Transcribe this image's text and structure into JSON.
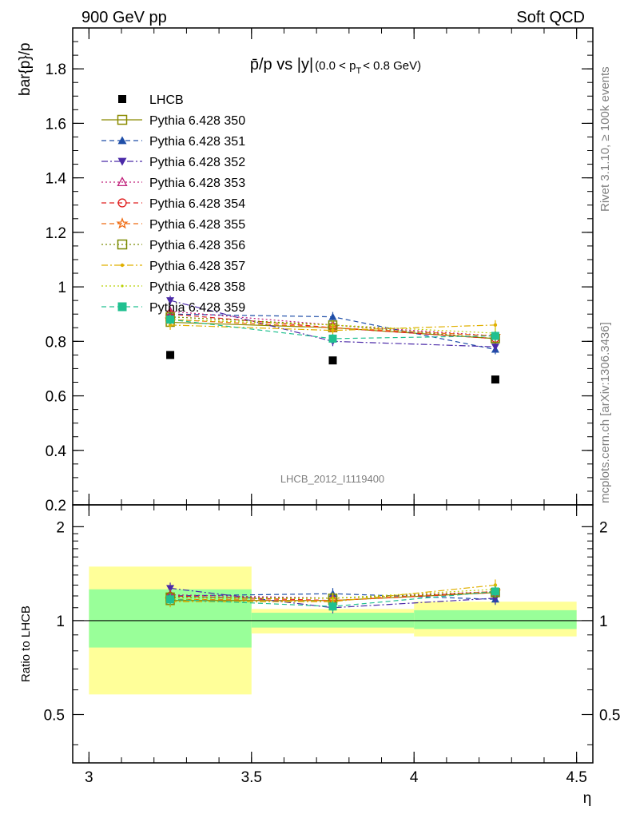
{
  "header": {
    "left": "900 GeV pp",
    "right": "Soft QCD"
  },
  "side_labels": {
    "rivet": "Rivet 3.1.10, ≥ 100k events",
    "mcplots": "mcplots.cern.ch [arXiv:1306.3436]"
  },
  "chart_data": [
    {
      "type": "scatter",
      "panel": "main",
      "title": "p̄/p vs |y| (0.0 < p_T < 0.8 GeV)",
      "ylabel": "bar{p}/p",
      "xlabel": "η",
      "watermark": "LHCB_2012_I1119400",
      "xlim": [
        2.95,
        4.55
      ],
      "ylim": [
        0.2,
        1.95
      ],
      "yticks": [
        "0.2",
        "0.4",
        "0.6",
        "0.8",
        "1",
        "1.2",
        "1.4",
        "1.6",
        "1.8"
      ],
      "legend_position": "top-left",
      "x": [
        3.25,
        3.75,
        4.25
      ],
      "data": {
        "name": "LHCB",
        "values": [
          0.75,
          0.73,
          0.66
        ]
      },
      "series": [
        {
          "name": "Pythia 6.428 350",
          "color": "#8b8b00",
          "marker": "open-square",
          "dash": "solid",
          "values": [
            0.87,
            0.85,
            0.81
          ]
        },
        {
          "name": "Pythia 6.428 351",
          "color": "#1f4ea8",
          "marker": "triangle-up",
          "dash": "dashed",
          "values": [
            0.9,
            0.89,
            0.77
          ]
        },
        {
          "name": "Pythia 6.428 352",
          "color": "#4b2aa8",
          "marker": "triangle-down",
          "dash": "dashdot",
          "values": [
            0.95,
            0.8,
            0.78
          ]
        },
        {
          "name": "Pythia 6.428 353",
          "color": "#c0207a",
          "marker": "open-triangle",
          "dash": "dotted",
          "values": [
            0.91,
            0.86,
            0.82
          ]
        },
        {
          "name": "Pythia 6.428 354",
          "color": "#e02020",
          "marker": "open-circle",
          "dash": "dashed",
          "values": [
            0.9,
            0.85,
            0.81
          ]
        },
        {
          "name": "Pythia 6.428 355",
          "color": "#ef6a10",
          "marker": "open-star",
          "dash": "dashed",
          "values": [
            0.88,
            0.85,
            0.82
          ]
        },
        {
          "name": "Pythia 6.428 356",
          "color": "#7a8a00",
          "marker": "open-square",
          "dash": "dotted",
          "values": [
            0.89,
            0.86,
            0.81
          ]
        },
        {
          "name": "Pythia 6.428 357",
          "color": "#e0b000",
          "marker": "dot",
          "dash": "dashdot",
          "values": [
            0.86,
            0.84,
            0.86
          ]
        },
        {
          "name": "Pythia 6.428 358",
          "color": "#b8d000",
          "marker": "small-dot",
          "dash": "dotted",
          "values": [
            0.88,
            0.86,
            0.83
          ]
        },
        {
          "name": "Pythia 6.428 359",
          "color": "#20c090",
          "marker": "filled-square",
          "dash": "dashed",
          "values": [
            0.88,
            0.81,
            0.82
          ]
        }
      ]
    },
    {
      "type": "scatter",
      "panel": "ratio",
      "ylabel": "Ratio to LHCB",
      "xlabel": "η",
      "xlim": [
        2.95,
        4.55
      ],
      "ylim": [
        0.35,
        2.35
      ],
      "log_y": true,
      "xticks": [
        "3",
        "3.5",
        "4",
        "4.5"
      ],
      "yticks": [
        "0.5",
        "1",
        "2"
      ],
      "x": [
        3.25,
        3.75,
        4.25
      ],
      "bands": [
        {
          "x": [
            3.0,
            3.5
          ],
          "green": [
            0.82,
            1.26
          ],
          "yellow": [
            0.58,
            1.49
          ]
        },
        {
          "x": [
            3.5,
            4.0
          ],
          "green": [
            0.95,
            1.06
          ],
          "yellow": [
            0.91,
            1.09
          ]
        },
        {
          "x": [
            4.0,
            4.5
          ],
          "green": [
            0.94,
            1.08
          ],
          "yellow": [
            0.89,
            1.15
          ]
        }
      ],
      "series": [
        {
          "name": "Pythia 6.428 350",
          "values": [
            1.16,
            1.16,
            1.23
          ]
        },
        {
          "name": "Pythia 6.428 351",
          "values": [
            1.2,
            1.22,
            1.17
          ]
        },
        {
          "name": "Pythia 6.428 352",
          "values": [
            1.27,
            1.1,
            1.18
          ]
        },
        {
          "name": "Pythia 6.428 353",
          "values": [
            1.21,
            1.18,
            1.24
          ]
        },
        {
          "name": "Pythia 6.428 354",
          "values": [
            1.2,
            1.16,
            1.23
          ]
        },
        {
          "name": "Pythia 6.428 355",
          "values": [
            1.17,
            1.16,
            1.24
          ]
        },
        {
          "name": "Pythia 6.428 356",
          "values": [
            1.19,
            1.18,
            1.23
          ]
        },
        {
          "name": "Pythia 6.428 357",
          "values": [
            1.15,
            1.15,
            1.3
          ]
        },
        {
          "name": "Pythia 6.428 358",
          "values": [
            1.17,
            1.18,
            1.26
          ]
        },
        {
          "name": "Pythia 6.428 359",
          "values": [
            1.17,
            1.11,
            1.24
          ]
        }
      ]
    }
  ]
}
